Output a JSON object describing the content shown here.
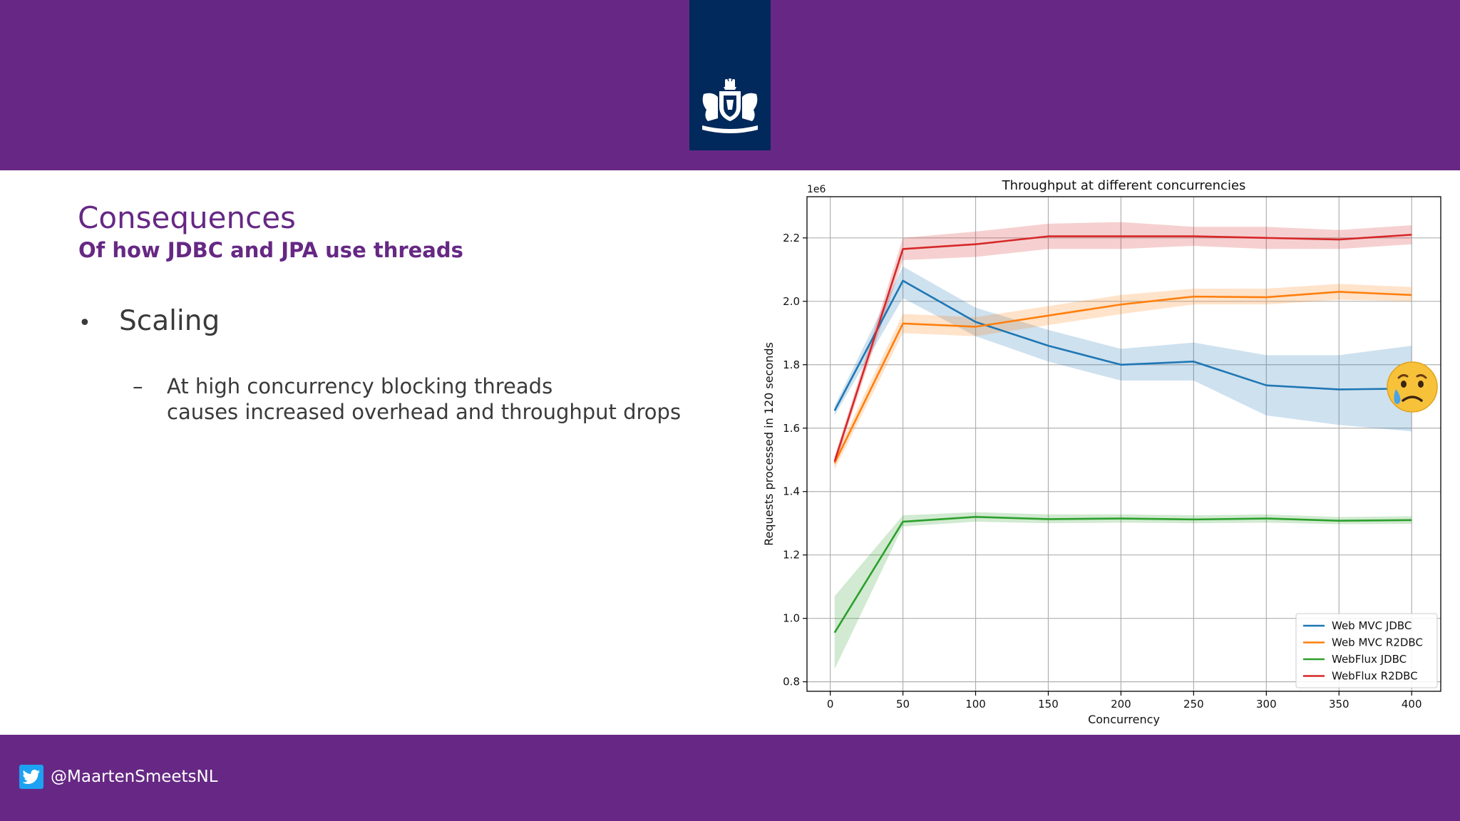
{
  "slide": {
    "title": "Consequences",
    "subtitle": "Of how JDBC and JPA use threads",
    "bullet": "Scaling",
    "sub_bullet_lines": [
      "At high concurrency blocking threads",
      "causes increased overhead and throughput drops"
    ],
    "bullet_marker": "•",
    "sub_marker": "–"
  },
  "footer": {
    "handle": "@MaartenSmeetsNL",
    "icon": "twitter-icon"
  },
  "header": {
    "logo_icon": "coat-of-arms-icon"
  },
  "overlay": {
    "icon": "crying-face-emoji"
  },
  "colors": {
    "brand_purple": "#662884",
    "logo_navy": "#01295b",
    "twitter_blue": "#1da1f2"
  },
  "chart_data": {
    "type": "line",
    "title": "Throughput at different concurrencies",
    "xlabel": "Concurrency",
    "ylabel": "Requests processed in 120 seconds",
    "y_scale_label": "1e6",
    "x": [
      3,
      50,
      100,
      150,
      200,
      250,
      300,
      350,
      400
    ],
    "xticks": [
      0,
      50,
      100,
      150,
      200,
      250,
      300,
      350,
      400
    ],
    "yticks": [
      0.8,
      1.0,
      1.2,
      1.4,
      1.6,
      1.8,
      2.0,
      2.2
    ],
    "xlim": [
      -16,
      420
    ],
    "ylim": [
      0.77,
      2.33
    ],
    "grid": true,
    "legend_position": "bottom-right",
    "series": [
      {
        "name": "Web MVC JDBC",
        "color": "#1f77b4",
        "values": [
          1.655,
          2.065,
          1.935,
          1.86,
          1.8,
          1.81,
          1.735,
          1.722,
          1.725
        ],
        "lower": [
          1.64,
          2.01,
          1.89,
          1.81,
          1.75,
          1.75,
          1.64,
          1.61,
          1.59
        ],
        "upper": [
          1.67,
          2.11,
          1.98,
          1.91,
          1.85,
          1.87,
          1.83,
          1.83,
          1.86
        ]
      },
      {
        "name": "Web MVC R2DBC",
        "color": "#ff7f0e",
        "values": [
          1.49,
          1.93,
          1.92,
          1.955,
          1.99,
          2.015,
          2.013,
          2.03,
          2.02
        ],
        "lower": [
          1.47,
          1.9,
          1.89,
          1.925,
          1.96,
          1.99,
          1.99,
          2.005,
          2.0
        ],
        "upper": [
          1.51,
          1.96,
          1.95,
          1.985,
          2.02,
          2.04,
          2.04,
          2.055,
          2.045
        ]
      },
      {
        "name": "WebFlux JDBC",
        "color": "#2ca02c",
        "values": [
          0.955,
          1.305,
          1.32,
          1.313,
          1.315,
          1.312,
          1.315,
          1.308,
          1.31
        ],
        "lower": [
          0.84,
          1.29,
          1.305,
          1.3,
          1.302,
          1.3,
          1.302,
          1.297,
          1.298
        ],
        "upper": [
          1.07,
          1.325,
          1.335,
          1.328,
          1.328,
          1.325,
          1.328,
          1.32,
          1.322
        ]
      },
      {
        "name": "WebFlux R2DBC",
        "color": "#d62728",
        "values": [
          1.495,
          2.165,
          2.18,
          2.205,
          2.205,
          2.205,
          2.2,
          2.195,
          2.21
        ],
        "lower": [
          1.48,
          2.13,
          2.14,
          2.165,
          2.165,
          2.175,
          2.165,
          2.165,
          2.18
        ],
        "upper": [
          1.51,
          2.2,
          2.22,
          2.245,
          2.25,
          2.235,
          2.235,
          2.225,
          2.24
        ]
      }
    ]
  }
}
